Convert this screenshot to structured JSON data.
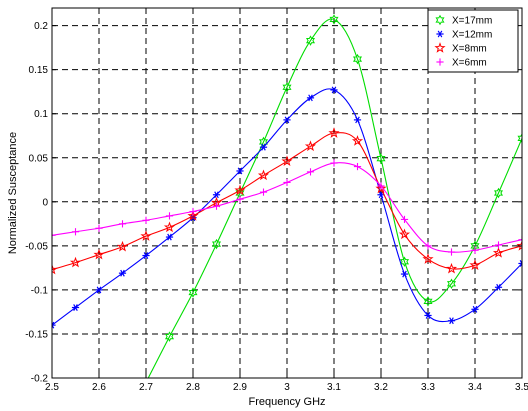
{
  "chart_data": {
    "type": "line",
    "title": "",
    "xlabel": "Frequency GHz",
    "ylabel": "Normalized Susceptance",
    "xlim": [
      2.5,
      3.5
    ],
    "ylim": [
      -0.2,
      0.22
    ],
    "xticks": [
      "2.5",
      "2.6",
      "2.7",
      "2.8",
      "2.9",
      "3",
      "3.1",
      "3.2",
      "3.3",
      "3.4",
      "3.5"
    ],
    "yticks": [
      "-0.2",
      "-0.15",
      "-0.1",
      "-0.05",
      "0",
      "0.05",
      "0.1",
      "0.15",
      "0.2"
    ],
    "grid": true,
    "legend_position": "top-right",
    "series": [
      {
        "name": "X=17mm",
        "color": "#00dd00",
        "marker": "hexagram",
        "x": [
          2.7,
          2.75,
          2.8,
          2.85,
          2.9,
          2.95,
          3.0,
          3.05,
          3.1,
          3.15,
          3.2,
          3.25,
          3.3,
          3.35,
          3.4,
          3.45,
          3.5
        ],
        "y": [
          -0.205,
          -0.153,
          -0.103,
          -0.048,
          0.01,
          0.068,
          0.13,
          0.183,
          0.207,
          0.162,
          0.049,
          -0.068,
          -0.113,
          -0.093,
          -0.05,
          0.01,
          0.072
        ],
        "marker_x": [
          2.75,
          2.8,
          2.85,
          2.9,
          2.95,
          3.0,
          3.05,
          3.1,
          3.15,
          3.2,
          3.25,
          3.3,
          3.35,
          3.4,
          3.45,
          3.5
        ]
      },
      {
        "name": "X=12mm",
        "color": "#0000ff",
        "marker": "asterisk",
        "x": [
          2.5,
          2.55,
          2.6,
          2.65,
          2.7,
          2.75,
          2.8,
          2.85,
          2.9,
          2.95,
          3.0,
          3.05,
          3.1,
          3.15,
          3.2,
          3.25,
          3.3,
          3.35,
          3.4,
          3.45,
          3.5
        ],
        "y": [
          -0.14,
          -0.12,
          -0.1,
          -0.081,
          -0.061,
          -0.04,
          -0.018,
          0.008,
          0.035,
          0.062,
          0.093,
          0.118,
          0.127,
          0.093,
          0.008,
          -0.082,
          -0.129,
          -0.135,
          -0.122,
          -0.097,
          -0.07
        ]
      },
      {
        "name": "X=8mm",
        "color": "#ff0000",
        "marker": "star",
        "x": [
          2.5,
          2.55,
          2.6,
          2.65,
          2.7,
          2.75,
          2.8,
          2.85,
          2.9,
          2.95,
          3.0,
          3.05,
          3.1,
          3.15,
          3.2,
          3.25,
          3.3,
          3.35,
          3.4,
          3.45,
          3.5
        ],
        "y": [
          -0.077,
          -0.069,
          -0.06,
          -0.051,
          -0.039,
          -0.029,
          -0.016,
          -0.001,
          0.013,
          0.03,
          0.046,
          0.063,
          0.078,
          0.069,
          0.015,
          -0.037,
          -0.065,
          -0.076,
          -0.072,
          -0.058,
          -0.05
        ]
      },
      {
        "name": "X=6mm",
        "color": "#ff00ff",
        "marker": "plus",
        "x": [
          2.5,
          2.55,
          2.6,
          2.65,
          2.7,
          2.75,
          2.8,
          2.85,
          2.9,
          2.95,
          3.0,
          3.05,
          3.1,
          3.15,
          3.2,
          3.25,
          3.3,
          3.35,
          3.4,
          3.45,
          3.5
        ],
        "y": [
          -0.038,
          -0.034,
          -0.03,
          -0.025,
          -0.021,
          -0.016,
          -0.011,
          -0.005,
          0.003,
          0.011,
          0.022,
          0.034,
          0.044,
          0.04,
          0.018,
          -0.02,
          -0.05,
          -0.057,
          -0.055,
          -0.049,
          -0.043
        ]
      }
    ]
  }
}
